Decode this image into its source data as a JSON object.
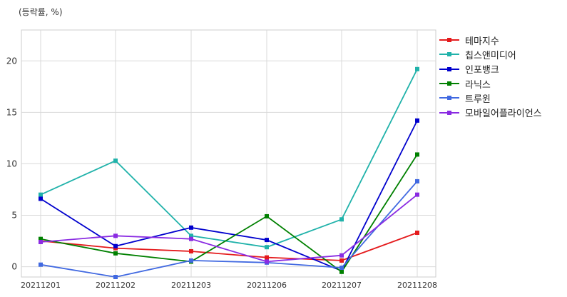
{
  "chart_data": {
    "type": "line",
    "title": "",
    "unit_label": "(등락률, %)",
    "xlabel": "",
    "ylabel": "",
    "categories": [
      "20211201",
      "20211202",
      "20211203",
      "20211206",
      "20211207",
      "20211208"
    ],
    "ylim": [
      -1,
      23
    ],
    "yticks": [
      0,
      5,
      10,
      15,
      20
    ],
    "grid": true,
    "legend_position": "right",
    "series": [
      {
        "name": "테마지수",
        "color": "#e41a1c",
        "values": [
          2.5,
          1.8,
          1.5,
          0.9,
          0.6,
          3.3
        ]
      },
      {
        "name": "칩스앤미디어",
        "color": "#20b2aa",
        "values": [
          7.0,
          10.3,
          3.0,
          1.9,
          4.6,
          19.2
        ]
      },
      {
        "name": "인포뱅크",
        "color": "#0000cd",
        "values": [
          6.6,
          2.0,
          3.8,
          2.6,
          -0.4,
          14.2
        ]
      },
      {
        "name": "라닉스",
        "color": "#008000",
        "values": [
          2.7,
          1.3,
          0.5,
          4.9,
          -0.5,
          10.9
        ]
      },
      {
        "name": "트루윈",
        "color": "#4169e1",
        "values": [
          0.2,
          -1.0,
          0.6,
          0.4,
          -0.1,
          8.3
        ]
      },
      {
        "name": "모바일어플라이언스",
        "color": "#8a2be2",
        "values": [
          2.4,
          3.0,
          2.7,
          0.5,
          1.1,
          7.0
        ]
      }
    ]
  }
}
